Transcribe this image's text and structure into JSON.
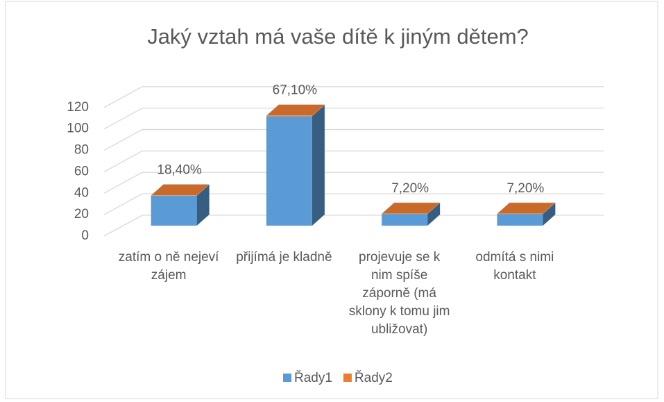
{
  "chart_data": {
    "type": "bar3d_stacked",
    "title": "Jaký vztah má vaše dítě k jiným dětem?",
    "categories": [
      "zatím o ně nejeví zájem",
      "přijímá je kladně",
      "projevuje se k nim spíše záporně (má sklony k tomu jim ubližovat)",
      "odmítá s nimi kontakt"
    ],
    "series": [
      {
        "name": "Řady1",
        "color": "#5b9bd5",
        "values": [
          28,
          102,
          11,
          11
        ]
      },
      {
        "name": "Řady2",
        "color": "#ed7d31",
        "values": [
          0.184,
          0.671,
          0.072,
          0.072
        ],
        "value_labels": [
          "18,40%",
          "67,10%",
          "7,20%",
          "7,20%"
        ]
      }
    ],
    "ylim": [
      0,
      140
    ],
    "yticks": [
      0,
      20,
      40,
      60,
      80,
      100,
      120
    ],
    "grid": true,
    "legend": "bottom"
  }
}
